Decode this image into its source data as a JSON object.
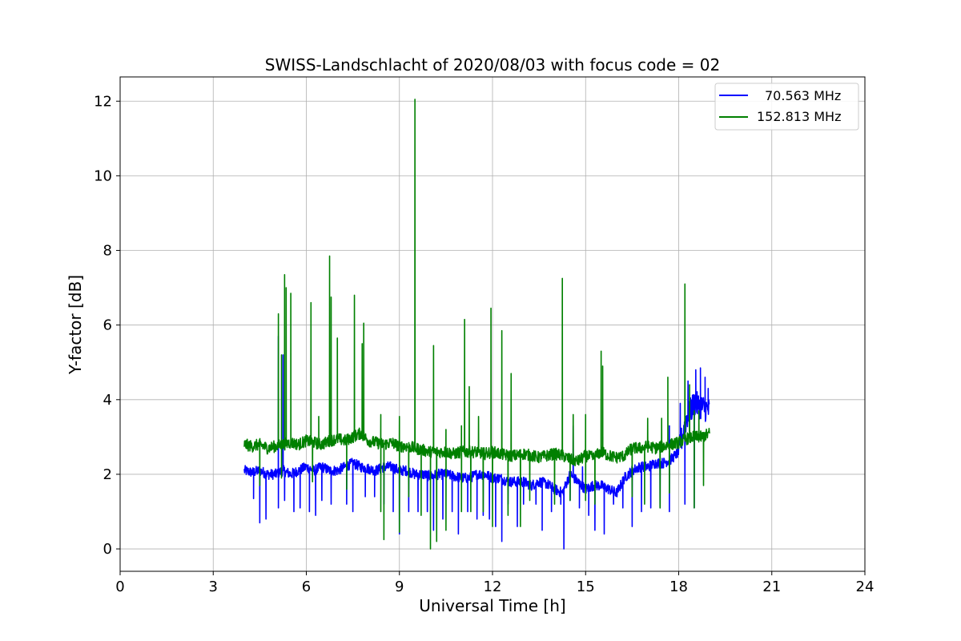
{
  "chart_data": {
    "type": "line",
    "title": "SWISS-Landschlacht of 2020/08/03 with focus code = 02",
    "xlabel": "Universal Time [h]",
    "ylabel": "Y-factor [dB]",
    "xlim": [
      0,
      24
    ],
    "ylim": [
      -0.6,
      12.65
    ],
    "xticks": [
      0,
      3,
      6,
      9,
      12,
      15,
      18,
      21,
      24
    ],
    "yticks": [
      0,
      2,
      4,
      6,
      8,
      10,
      12
    ],
    "grid": true,
    "legend_position": "top-right",
    "series": [
      {
        "name": "70.563 MHz",
        "color": "#0000ff",
        "x": [
          4.0,
          4.25,
          4.5,
          4.75,
          5.0,
          5.25,
          5.5,
          5.75,
          6.0,
          6.25,
          6.5,
          6.75,
          7.0,
          7.25,
          7.5,
          7.75,
          8.0,
          8.25,
          8.5,
          8.75,
          9.0,
          9.25,
          9.5,
          9.75,
          10.0,
          10.25,
          10.5,
          10.75,
          11.0,
          11.25,
          11.5,
          11.75,
          12.0,
          12.25,
          12.5,
          12.75,
          13.0,
          13.25,
          13.5,
          13.75,
          14.0,
          14.25,
          14.5,
          14.75,
          15.0,
          15.25,
          15.5,
          15.75,
          16.0,
          16.25,
          16.5,
          16.75,
          17.0,
          17.25,
          17.5,
          17.75,
          18.0,
          18.25,
          18.5,
          18.75,
          19.0
        ],
        "y": [
          2.1,
          2.05,
          2.1,
          2.0,
          2.0,
          2.1,
          2.0,
          2.1,
          2.2,
          2.1,
          2.2,
          2.1,
          2.1,
          2.2,
          2.3,
          2.2,
          2.15,
          2.1,
          2.2,
          2.2,
          2.1,
          2.1,
          2.0,
          2.0,
          1.95,
          2.0,
          2.0,
          1.95,
          1.9,
          1.9,
          2.0,
          2.0,
          1.9,
          1.9,
          1.8,
          1.8,
          1.8,
          1.7,
          1.8,
          1.75,
          1.6,
          1.5,
          2.0,
          1.8,
          1.6,
          1.7,
          1.7,
          1.6,
          1.5,
          1.9,
          2.1,
          2.2,
          2.2,
          2.3,
          2.3,
          2.4,
          2.6,
          3.5,
          3.9,
          3.8,
          3.7
        ],
        "dips": [
          [
            4.3,
            1.35
          ],
          [
            4.5,
            0.7
          ],
          [
            4.7,
            0.8
          ],
          [
            5.1,
            1.1
          ],
          [
            5.3,
            1.3
          ],
          [
            5.6,
            1.0
          ],
          [
            5.8,
            1.1
          ],
          [
            6.1,
            1.0
          ],
          [
            6.3,
            0.9
          ],
          [
            6.5,
            1.3
          ],
          [
            6.8,
            1.2
          ],
          [
            7.3,
            1.2
          ],
          [
            7.5,
            1.0
          ],
          [
            7.9,
            1.4
          ],
          [
            8.2,
            1.4
          ],
          [
            8.5,
            1.2
          ],
          [
            8.8,
            1.0
          ],
          [
            9.0,
            0.4
          ],
          [
            9.3,
            1.0
          ],
          [
            9.6,
            1.0
          ],
          [
            9.9,
            1.0
          ],
          [
            10.1,
            0.5
          ],
          [
            10.4,
            0.8
          ],
          [
            10.7,
            1.0
          ],
          [
            10.9,
            0.4
          ],
          [
            11.2,
            1.0
          ],
          [
            11.5,
            0.8
          ],
          [
            11.7,
            0.9
          ],
          [
            11.9,
            0.8
          ],
          [
            12.1,
            0.6
          ],
          [
            12.3,
            0.2
          ],
          [
            12.5,
            1.2
          ],
          [
            12.8,
            0.6
          ],
          [
            13.0,
            1.2
          ],
          [
            13.4,
            1.2
          ],
          [
            13.6,
            0.5
          ],
          [
            13.9,
            1.0
          ],
          [
            14.2,
            1.2
          ],
          [
            14.3,
            0.0
          ],
          [
            14.5,
            1.3
          ],
          [
            14.8,
            1.1
          ],
          [
            15.1,
            0.9
          ],
          [
            15.3,
            0.5
          ],
          [
            15.6,
            0.4
          ],
          [
            15.9,
            1.2
          ],
          [
            16.2,
            1.1
          ],
          [
            16.5,
            0.6
          ],
          [
            16.8,
            1.0
          ],
          [
            17.1,
            1.1
          ],
          [
            17.4,
            1.1
          ],
          [
            17.7,
            1.0
          ],
          [
            18.2,
            1.2
          ],
          [
            18.5,
            1.1
          ]
        ],
        "spikes": [
          [
            5.1,
            5.7
          ],
          [
            5.25,
            5.2
          ],
          [
            14.6,
            3.3
          ],
          [
            14.9,
            2.2
          ],
          [
            17.7,
            3.3
          ],
          [
            18.05,
            3.9
          ],
          [
            18.3,
            4.5
          ],
          [
            18.55,
            4.8
          ],
          [
            18.7,
            4.85
          ],
          [
            18.85,
            4.6
          ],
          [
            18.95,
            4.3
          ]
        ]
      },
      {
        "name": "152.813 MHz",
        "color": "#008000",
        "x": [
          4.0,
          4.25,
          4.5,
          4.75,
          5.0,
          5.25,
          5.5,
          5.75,
          6.0,
          6.25,
          6.5,
          6.75,
          7.0,
          7.25,
          7.5,
          7.75,
          8.0,
          8.25,
          8.5,
          8.75,
          9.0,
          9.25,
          9.5,
          9.75,
          10.0,
          10.25,
          10.5,
          10.75,
          11.0,
          11.25,
          11.5,
          11.75,
          12.0,
          12.25,
          12.5,
          12.75,
          13.0,
          13.25,
          13.5,
          13.75,
          14.0,
          14.25,
          14.5,
          14.75,
          15.0,
          15.25,
          15.5,
          15.75,
          16.0,
          16.25,
          16.5,
          16.75,
          17.0,
          17.25,
          17.5,
          17.75,
          18.0,
          18.25,
          18.5,
          18.75,
          19.0
        ],
        "y": [
          2.8,
          2.75,
          2.8,
          2.7,
          2.75,
          2.8,
          2.85,
          2.8,
          2.9,
          2.85,
          2.8,
          2.9,
          2.95,
          2.9,
          3.0,
          3.1,
          2.9,
          2.85,
          2.8,
          2.85,
          2.75,
          2.75,
          2.7,
          2.65,
          2.6,
          2.6,
          2.6,
          2.55,
          2.6,
          2.6,
          2.6,
          2.55,
          2.6,
          2.55,
          2.5,
          2.5,
          2.55,
          2.5,
          2.45,
          2.5,
          2.55,
          2.5,
          2.4,
          2.35,
          2.5,
          2.45,
          2.6,
          2.5,
          2.45,
          2.5,
          2.7,
          2.7,
          2.75,
          2.7,
          2.75,
          2.8,
          2.85,
          2.95,
          3.0,
          3.0,
          3.1
        ],
        "spikes": [
          [
            5.1,
            6.3
          ],
          [
            5.2,
            5.2
          ],
          [
            5.3,
            7.35
          ],
          [
            5.35,
            7.0
          ],
          [
            5.5,
            6.85
          ],
          [
            6.15,
            6.6
          ],
          [
            6.4,
            3.55
          ],
          [
            6.75,
            7.85
          ],
          [
            6.8,
            6.75
          ],
          [
            7.0,
            5.65
          ],
          [
            7.55,
            6.8
          ],
          [
            7.8,
            5.5
          ],
          [
            7.85,
            6.05
          ],
          [
            8.4,
            3.6
          ],
          [
            9.0,
            3.55
          ],
          [
            9.5,
            12.05
          ],
          [
            10.1,
            5.45
          ],
          [
            10.5,
            3.2
          ],
          [
            11.0,
            3.3
          ],
          [
            11.1,
            6.15
          ],
          [
            11.25,
            4.35
          ],
          [
            11.55,
            3.55
          ],
          [
            11.95,
            6.45
          ],
          [
            12.3,
            5.85
          ],
          [
            12.6,
            4.7
          ],
          [
            14.25,
            7.25
          ],
          [
            14.6,
            3.6
          ],
          [
            15.0,
            3.6
          ],
          [
            15.5,
            5.3
          ],
          [
            15.55,
            4.9
          ],
          [
            17.0,
            3.5
          ],
          [
            17.45,
            3.5
          ],
          [
            17.65,
            4.6
          ],
          [
            18.2,
            7.1
          ],
          [
            18.35,
            4.4
          ],
          [
            18.5,
            3.7
          ],
          [
            18.65,
            3.7
          ]
        ],
        "dips": [
          [
            4.5,
            1.7
          ],
          [
            5.2,
            1.9
          ],
          [
            6.2,
            1.8
          ],
          [
            7.3,
            1.6
          ],
          [
            8.4,
            1.0
          ],
          [
            8.5,
            0.25
          ],
          [
            9.0,
            0.45
          ],
          [
            9.3,
            1.4
          ],
          [
            9.7,
            0.9
          ],
          [
            10.0,
            0.0
          ],
          [
            10.2,
            0.2
          ],
          [
            10.5,
            0.5
          ],
          [
            11.0,
            1.0
          ],
          [
            11.3,
            1.0
          ],
          [
            11.7,
            1.0
          ],
          [
            12.0,
            0.6
          ],
          [
            12.5,
            0.9
          ],
          [
            12.9,
            0.6
          ],
          [
            13.2,
            1.3
          ],
          [
            14.0,
            1.2
          ],
          [
            14.5,
            1.3
          ],
          [
            15.0,
            1.3
          ],
          [
            15.3,
            1.2
          ],
          [
            16.5,
            1.4
          ],
          [
            16.9,
            1.2
          ],
          [
            17.4,
            1.1
          ],
          [
            17.7,
            1.5
          ],
          [
            18.5,
            1.1
          ],
          [
            18.8,
            1.7
          ]
        ]
      }
    ]
  }
}
